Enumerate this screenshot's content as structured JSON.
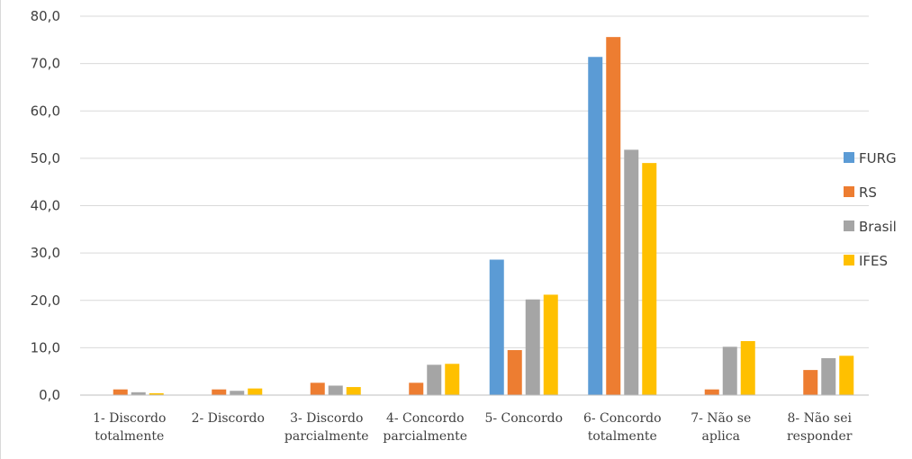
{
  "chart_data": {
    "type": "bar",
    "title": "",
    "xlabel": "",
    "ylabel": "",
    "ylim": [
      0,
      80
    ],
    "yticks": [
      0,
      10,
      20,
      30,
      40,
      50,
      60,
      70,
      80
    ],
    "ytick_format_decimals": 1,
    "ytick_decimal_separator": ",",
    "grid": true,
    "legend_position": "right",
    "categories": [
      [
        "1- Discordo",
        "totalmente"
      ],
      [
        "2- Discordo"
      ],
      [
        "3- Discordo",
        "parcialmente"
      ],
      [
        "4- Concordo",
        "parcialmente"
      ],
      [
        "5- Concordo"
      ],
      [
        "6- Concordo",
        "totalmente"
      ],
      [
        "7- Não se",
        "aplica"
      ],
      [
        "8- Não sei",
        "responder"
      ]
    ],
    "series": [
      {
        "name": "FURG",
        "color": "#5B9BD5",
        "values": [
          0.0,
          0.0,
          0.0,
          0.0,
          28.6,
          71.4,
          0.0,
          0.0
        ]
      },
      {
        "name": "RS",
        "color": "#ED7D31",
        "values": [
          1.2,
          1.2,
          2.6,
          2.6,
          9.5,
          75.6,
          1.2,
          5.3
        ]
      },
      {
        "name": "Brasil",
        "color": "#A5A5A5",
        "values": [
          0.6,
          0.9,
          2.0,
          6.4,
          20.2,
          51.8,
          10.2,
          7.8
        ]
      },
      {
        "name": "IFES",
        "color": "#FFC000",
        "values": [
          0.4,
          1.4,
          1.7,
          6.6,
          21.2,
          49.0,
          11.4,
          8.3
        ]
      }
    ]
  }
}
